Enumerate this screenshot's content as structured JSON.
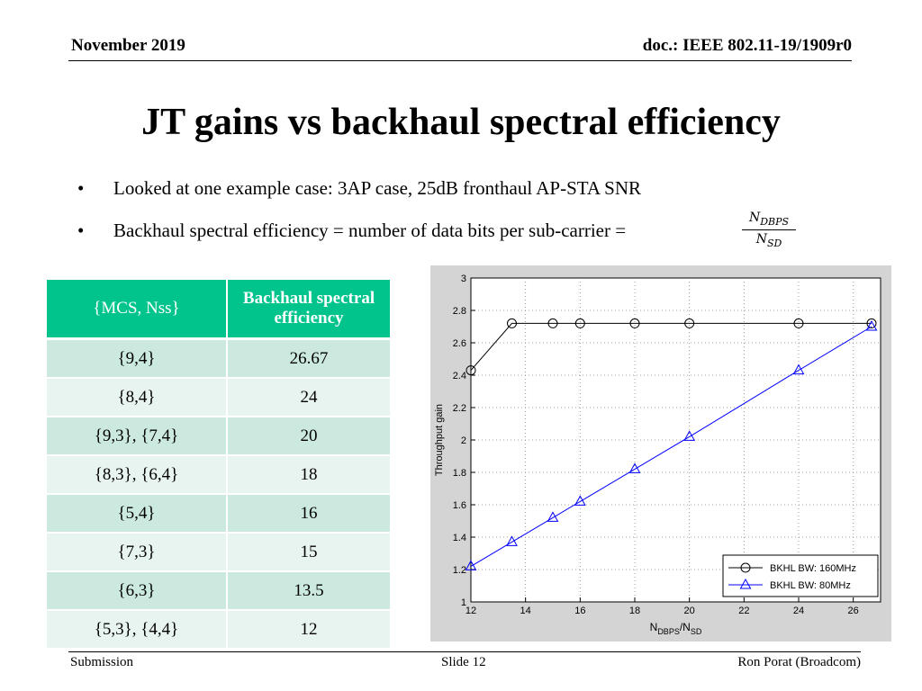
{
  "header": {
    "date": "November 2019",
    "doc": "doc.: IEEE 802.11-19/1909r0"
  },
  "title": "JT gains vs backhaul spectral efficiency",
  "bullets": [
    {
      "marker": "•",
      "text": "Looked at one example case: 3AP case, 25dB fronthaul AP-STA SNR"
    },
    {
      "marker": "•",
      "text": "Backhaul spectral efficiency = number of data bits per sub-carrier ="
    }
  ],
  "formula": {
    "numerator": "NDBPS",
    "denominator": "NSD"
  },
  "table": {
    "headers": [
      "{MCS, Nss}",
      "Backhaul spectral efficiency"
    ],
    "rows": [
      [
        "{9,4}",
        "26.67"
      ],
      [
        "{8,4}",
        "24"
      ],
      [
        "{9,3}, {7,4}",
        "20"
      ],
      [
        "{8,3}, {6,4}",
        "18"
      ],
      [
        "{5,4}",
        "16"
      ],
      [
        "{7,3}",
        "15"
      ],
      [
        "{6,3}",
        "13.5"
      ],
      [
        "{5,3}, {4,4}",
        "12"
      ]
    ]
  },
  "chart_data": {
    "type": "line",
    "title": "",
    "xlabel": "NDBPS/NSD",
    "ylabel": "Throughput gain",
    "xlim": [
      12,
      27
    ],
    "ylim": [
      1,
      3
    ],
    "xticks": [
      12,
      14,
      16,
      18,
      20,
      22,
      24,
      26
    ],
    "yticks": [
      1,
      1.2,
      1.4,
      1.6,
      1.8,
      2,
      2.2,
      2.4,
      2.6,
      2.8,
      3
    ],
    "grid": true,
    "legend_position": "bottom-right",
    "x": [
      12,
      13.5,
      15,
      16,
      18,
      20,
      24,
      26.67
    ],
    "series": [
      {
        "name": "BKHL BW: 160MHz",
        "marker": "circle",
        "color": "#000000",
        "values": [
          2.43,
          2.72,
          2.72,
          2.72,
          2.72,
          2.72,
          2.72,
          2.72
        ]
      },
      {
        "name": "BKHL BW: 80MHz",
        "marker": "triangle",
        "color": "#0000ff",
        "values": [
          1.22,
          1.37,
          1.52,
          1.62,
          1.82,
          2.02,
          2.43,
          2.7
        ]
      }
    ]
  },
  "footer": {
    "left": "Submission",
    "center": "Slide 12",
    "right": "Ron Porat (Broadcom)"
  }
}
